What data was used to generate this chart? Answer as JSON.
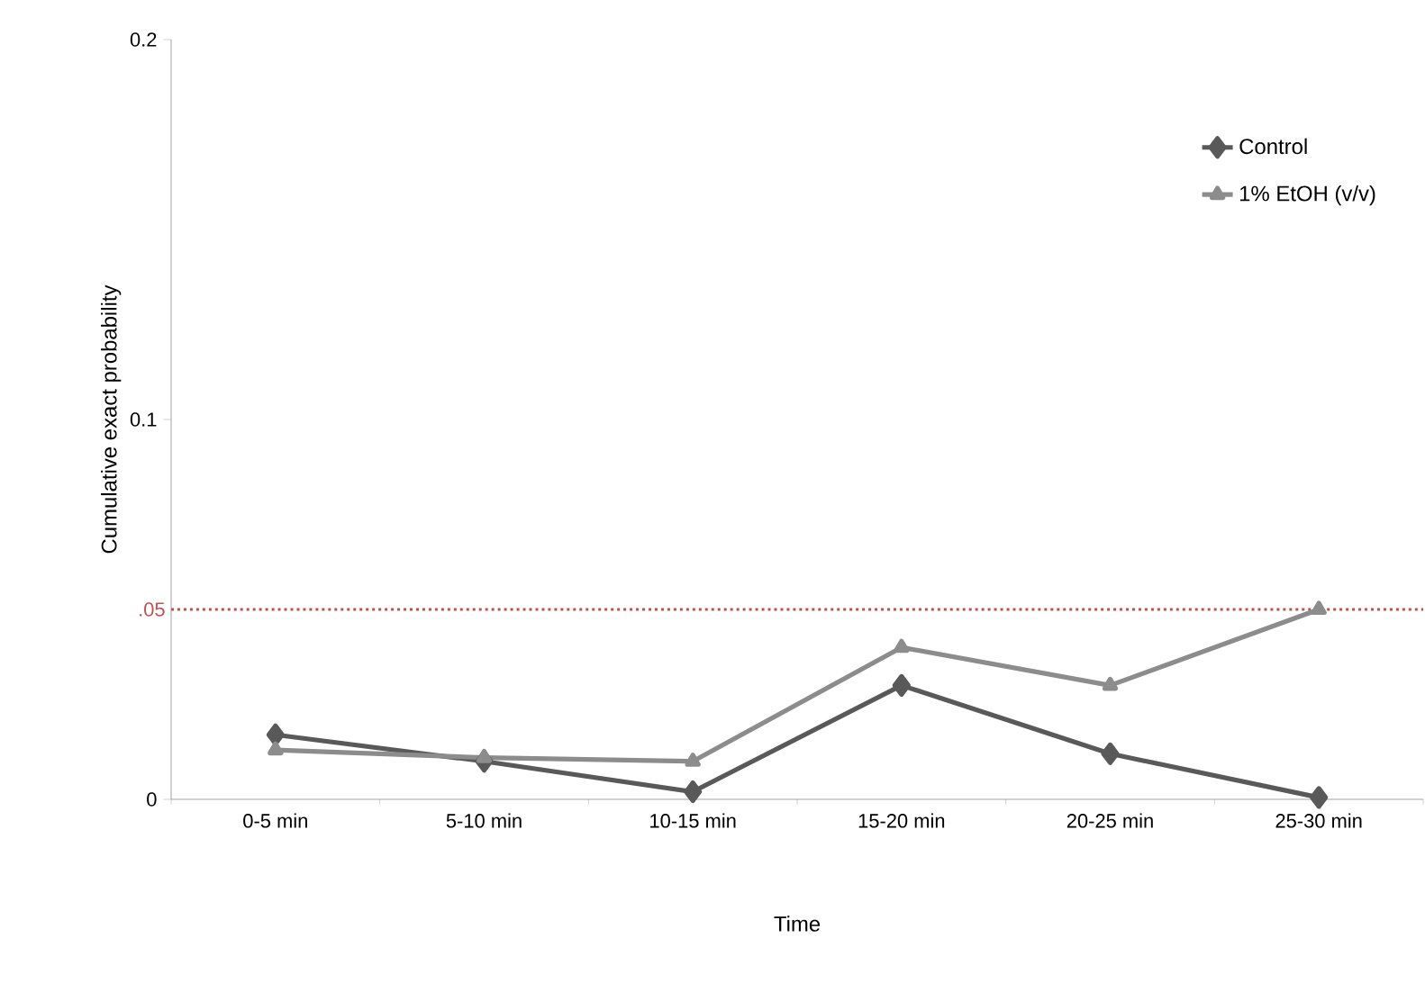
{
  "chart_data": {
    "type": "line",
    "xlabel": "Time",
    "ylabel": "Cumulative exact probability",
    "categories": [
      "0-5 min",
      "5-10 min",
      "10-15 min",
      "15-20 min",
      "20-25 min",
      "25-30 min"
    ],
    "series": [
      {
        "name": "Control",
        "color": "#595959",
        "marker": "diamond",
        "values": [
          0.017,
          0.01,
          0.002,
          0.03,
          0.012,
          0.0005
        ]
      },
      {
        "name": "1% EtOH (v/v)",
        "color": "#8c8c8c",
        "marker": "triangle",
        "values": [
          0.013,
          0.011,
          0.01,
          0.04,
          0.03,
          0.05
        ]
      }
    ],
    "ylim": [
      0,
      0.2
    ],
    "yticks": [
      0,
      0.1,
      0.2
    ],
    "ref_lines": [
      {
        "axis": "y",
        "value": 0.05,
        "label": ".05",
        "color": "#c0504d",
        "line_style": "dotted"
      }
    ],
    "legend": "top right",
    "grid": false,
    "line_style": "solid"
  }
}
